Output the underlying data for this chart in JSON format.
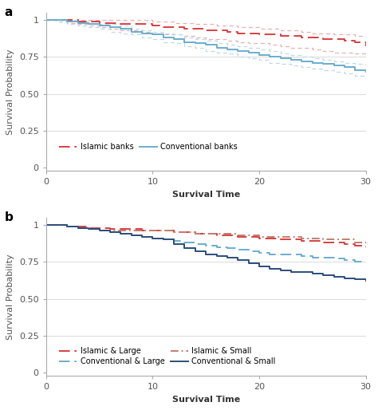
{
  "panel_a": {
    "islamic_x": [
      0,
      1,
      2,
      3,
      4,
      5,
      6,
      7,
      8,
      9,
      10,
      11,
      12,
      13,
      14,
      15,
      16,
      17,
      18,
      19,
      20,
      21,
      22,
      23,
      24,
      25,
      26,
      27,
      28,
      29,
      30
    ],
    "islamic_y": [
      1.0,
      1.0,
      1.0,
      0.99,
      0.99,
      0.98,
      0.98,
      0.97,
      0.97,
      0.97,
      0.96,
      0.95,
      0.95,
      0.94,
      0.94,
      0.93,
      0.93,
      0.92,
      0.91,
      0.91,
      0.9,
      0.9,
      0.89,
      0.89,
      0.88,
      0.88,
      0.87,
      0.87,
      0.86,
      0.85,
      0.82
    ],
    "islamic_ci_upper": [
      1.0,
      1.0,
      1.0,
      1.0,
      1.0,
      1.0,
      1.0,
      1.0,
      1.0,
      1.0,
      0.99,
      0.99,
      0.98,
      0.98,
      0.97,
      0.97,
      0.96,
      0.96,
      0.95,
      0.95,
      0.94,
      0.94,
      0.93,
      0.93,
      0.92,
      0.91,
      0.91,
      0.9,
      0.9,
      0.89,
      0.88
    ],
    "islamic_ci_lower": [
      1.0,
      0.99,
      0.98,
      0.97,
      0.96,
      0.95,
      0.94,
      0.93,
      0.93,
      0.92,
      0.91,
      0.9,
      0.9,
      0.89,
      0.88,
      0.87,
      0.87,
      0.86,
      0.85,
      0.84,
      0.84,
      0.83,
      0.82,
      0.81,
      0.81,
      0.8,
      0.79,
      0.78,
      0.78,
      0.77,
      0.76
    ],
    "conv_x": [
      0,
      1,
      2,
      3,
      4,
      5,
      6,
      7,
      8,
      9,
      10,
      11,
      12,
      13,
      14,
      15,
      16,
      17,
      18,
      19,
      20,
      21,
      22,
      23,
      24,
      25,
      26,
      27,
      28,
      29,
      30
    ],
    "conv_y": [
      1.0,
      1.0,
      0.99,
      0.98,
      0.97,
      0.96,
      0.95,
      0.94,
      0.92,
      0.91,
      0.9,
      0.88,
      0.87,
      0.85,
      0.84,
      0.83,
      0.81,
      0.8,
      0.79,
      0.78,
      0.76,
      0.75,
      0.74,
      0.73,
      0.72,
      0.71,
      0.7,
      0.69,
      0.68,
      0.66,
      0.65
    ],
    "conv_ci_upper": [
      1.0,
      1.0,
      1.0,
      0.99,
      0.98,
      0.97,
      0.97,
      0.96,
      0.94,
      0.93,
      0.92,
      0.91,
      0.9,
      0.88,
      0.87,
      0.86,
      0.84,
      0.83,
      0.82,
      0.81,
      0.8,
      0.79,
      0.77,
      0.76,
      0.75,
      0.74,
      0.73,
      0.72,
      0.71,
      0.7,
      0.69
    ],
    "conv_ci_lower": [
      1.0,
      0.99,
      0.97,
      0.96,
      0.95,
      0.94,
      0.92,
      0.91,
      0.9,
      0.88,
      0.87,
      0.85,
      0.84,
      0.82,
      0.81,
      0.79,
      0.78,
      0.77,
      0.75,
      0.74,
      0.73,
      0.71,
      0.7,
      0.69,
      0.68,
      0.67,
      0.66,
      0.65,
      0.64,
      0.62,
      0.6
    ],
    "islamic_color": "#d94040",
    "conv_color": "#6aadcf",
    "ci_color_islamic": "#e8b0b0",
    "ci_color_conv": "#c0d8e8",
    "xlabel": "Survival Time",
    "ylabel": "Survival Probability",
    "yticks": [
      0,
      0.25,
      0.5,
      0.75,
      1
    ],
    "ytick_labels": [
      "0",
      "0.25",
      "0.50",
      "0.75",
      "1"
    ],
    "xticks": [
      0,
      10,
      20,
      30
    ],
    "xlim": [
      0,
      30
    ],
    "ylim": [
      -0.02,
      1.05
    ]
  },
  "panel_b": {
    "isl_large_x": [
      0,
      1,
      2,
      3,
      4,
      5,
      6,
      7,
      8,
      9,
      10,
      11,
      12,
      13,
      14,
      15,
      16,
      17,
      18,
      19,
      20,
      21,
      22,
      23,
      24,
      25,
      26,
      27,
      28,
      29,
      30
    ],
    "isl_large_y": [
      1.0,
      1.0,
      0.99,
      0.99,
      0.98,
      0.98,
      0.97,
      0.97,
      0.97,
      0.96,
      0.96,
      0.96,
      0.95,
      0.95,
      0.94,
      0.94,
      0.93,
      0.93,
      0.92,
      0.92,
      0.91,
      0.91,
      0.9,
      0.9,
      0.89,
      0.89,
      0.88,
      0.88,
      0.87,
      0.86,
      0.85
    ],
    "isl_small_x": [
      0,
      1,
      2,
      3,
      4,
      5,
      6,
      7,
      8,
      9,
      10,
      11,
      12,
      13,
      14,
      15,
      16,
      17,
      18,
      19,
      20,
      21,
      22,
      23,
      24,
      25,
      26,
      27,
      28,
      29,
      30
    ],
    "isl_small_y": [
      1.0,
      1.0,
      0.99,
      0.98,
      0.97,
      0.96,
      0.96,
      0.96,
      0.96,
      0.96,
      0.96,
      0.96,
      0.95,
      0.95,
      0.94,
      0.94,
      0.94,
      0.94,
      0.93,
      0.93,
      0.92,
      0.92,
      0.92,
      0.92,
      0.91,
      0.91,
      0.9,
      0.9,
      0.9,
      0.88,
      0.87
    ],
    "conv_large_x": [
      0,
      1,
      2,
      3,
      4,
      5,
      6,
      7,
      8,
      9,
      10,
      11,
      12,
      13,
      14,
      15,
      16,
      17,
      18,
      19,
      20,
      21,
      22,
      23,
      24,
      25,
      26,
      27,
      28,
      29,
      30
    ],
    "conv_large_y": [
      1.0,
      1.0,
      0.99,
      0.98,
      0.97,
      0.96,
      0.95,
      0.94,
      0.93,
      0.92,
      0.91,
      0.9,
      0.89,
      0.88,
      0.87,
      0.86,
      0.85,
      0.84,
      0.83,
      0.82,
      0.81,
      0.8,
      0.8,
      0.8,
      0.79,
      0.78,
      0.78,
      0.77,
      0.76,
      0.75,
      0.75
    ],
    "conv_small_x": [
      0,
      1,
      2,
      3,
      4,
      5,
      6,
      7,
      8,
      9,
      10,
      11,
      12,
      13,
      14,
      15,
      16,
      17,
      18,
      19,
      20,
      21,
      22,
      23,
      24,
      25,
      26,
      27,
      28,
      29,
      30
    ],
    "conv_small_y": [
      1.0,
      1.0,
      0.99,
      0.98,
      0.97,
      0.96,
      0.95,
      0.94,
      0.93,
      0.92,
      0.91,
      0.9,
      0.87,
      0.84,
      0.82,
      0.8,
      0.79,
      0.78,
      0.76,
      0.74,
      0.72,
      0.7,
      0.69,
      0.68,
      0.68,
      0.67,
      0.66,
      0.65,
      0.64,
      0.63,
      0.62
    ],
    "isl_large_color": "#d94040",
    "isl_small_color": "#c08070",
    "conv_large_color": "#6aadcf",
    "conv_small_color": "#2b4d7a",
    "xlabel": "Survival Time",
    "ylabel": "Survival Probability",
    "yticks": [
      0,
      0.25,
      0.5,
      0.75,
      1
    ],
    "ytick_labels": [
      "0",
      "0.25",
      "0.50",
      "0.75",
      "1"
    ],
    "xticks": [
      0,
      10,
      20,
      30
    ],
    "xlim": [
      0,
      30
    ],
    "ylim": [
      -0.02,
      1.05
    ]
  },
  "bg_color": "#ffffff",
  "plot_bg": "#ffffff",
  "grid_color": "#dddddd",
  "spine_color": "#aaaaaa",
  "tick_color": "#555555",
  "label_color": "#333333"
}
